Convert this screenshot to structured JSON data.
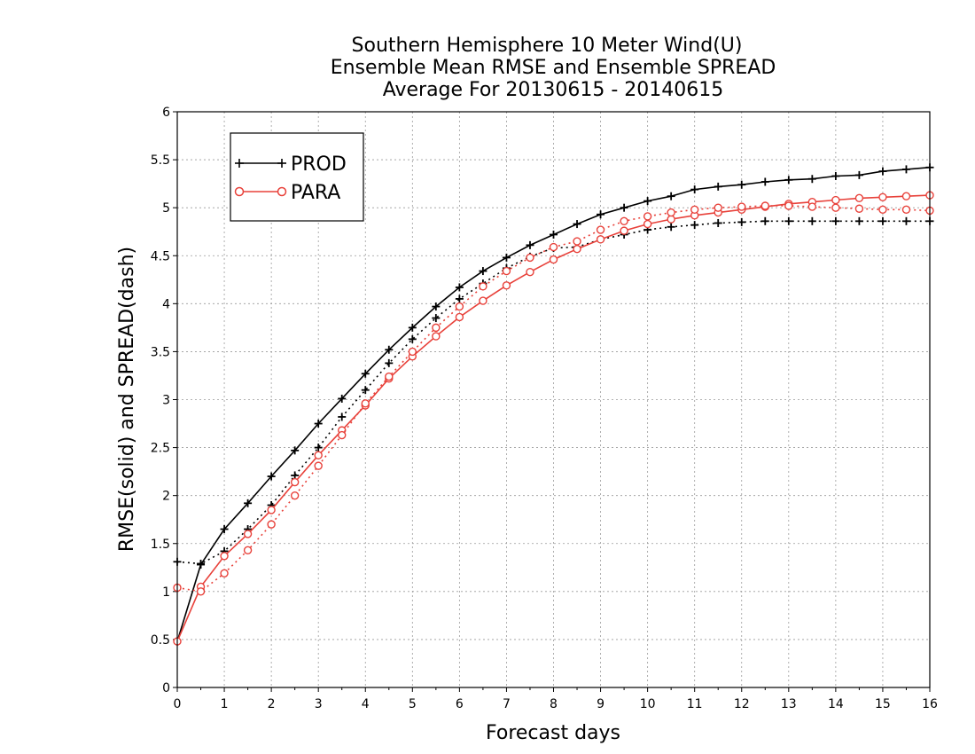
{
  "chart_data": {
    "type": "line",
    "title_lines": [
      "Southern Hemisphere 10 Meter Wind(U)",
      "Ensemble Mean RMSE and Ensemble SPREAD",
      "Average For 20130615 - 20140615"
    ],
    "xlabel": "Forecast days",
    "ylabel": "RMSE(solid) and SPREAD(dash)",
    "xlim": [
      0,
      16
    ],
    "ylim": [
      0,
      6
    ],
    "x_ticks": [
      "0",
      "1",
      "2",
      "3",
      "4",
      "5",
      "6",
      "7",
      "8",
      "9",
      "10",
      "11",
      "12",
      "13",
      "14",
      "15",
      "16"
    ],
    "y_ticks": [
      "0",
      "0.5",
      "1",
      "1.5",
      "2",
      "2.5",
      "3",
      "3.5",
      "4",
      "4.5",
      "5",
      "5.5",
      "6"
    ],
    "grid": true,
    "legend_position": "top-left",
    "x": [
      0,
      0.5,
      1,
      1.5,
      2,
      2.5,
      3,
      3.5,
      4,
      4.5,
      5,
      5.5,
      6,
      6.5,
      7,
      7.5,
      8,
      8.5,
      9,
      9.5,
      10,
      10.5,
      11,
      11.5,
      12,
      12.5,
      13,
      13.5,
      14,
      14.5,
      15,
      15.5,
      16
    ],
    "series": [
      {
        "name": "PROD",
        "metric": "RMSE",
        "line": "solid",
        "marker": "plus",
        "color": "#000000",
        "values": [
          0.48,
          1.28,
          1.65,
          1.92,
          2.2,
          2.47,
          2.75,
          3.01,
          3.27,
          3.52,
          3.75,
          3.97,
          4.17,
          4.34,
          4.48,
          4.61,
          4.72,
          4.83,
          4.93,
          5.0,
          5.07,
          5.12,
          5.19,
          5.22,
          5.24,
          5.27,
          5.29,
          5.3,
          5.33,
          5.34,
          5.38,
          5.4,
          5.42
        ]
      },
      {
        "name": "PROD",
        "metric": "SPREAD",
        "line": "dash",
        "marker": "plus",
        "color": "#000000",
        "values": [
          1.31,
          1.29,
          1.42,
          1.65,
          1.9,
          2.21,
          2.5,
          2.82,
          3.1,
          3.38,
          3.63,
          3.85,
          4.05,
          4.21,
          4.37,
          4.49,
          4.58,
          4.59,
          4.67,
          4.72,
          4.77,
          4.8,
          4.82,
          4.84,
          4.85,
          4.86,
          4.86,
          4.86,
          4.86,
          4.86,
          4.86,
          4.86,
          4.86
        ]
      },
      {
        "name": "PARA",
        "metric": "RMSE",
        "line": "solid",
        "marker": "circle",
        "color": "#e8413a",
        "values": [
          0.48,
          1.05,
          1.37,
          1.6,
          1.85,
          2.14,
          2.42,
          2.68,
          2.94,
          3.22,
          3.45,
          3.66,
          3.86,
          4.03,
          4.19,
          4.33,
          4.46,
          4.57,
          4.67,
          4.76,
          4.83,
          4.88,
          4.92,
          4.95,
          4.98,
          5.01,
          5.04,
          5.06,
          5.08,
          5.1,
          5.11,
          5.12,
          5.13
        ]
      },
      {
        "name": "PARA",
        "metric": "SPREAD",
        "line": "dash",
        "marker": "circle",
        "color": "#e8413a",
        "values": [
          1.04,
          1.0,
          1.19,
          1.43,
          1.7,
          2.0,
          2.31,
          2.63,
          2.96,
          3.24,
          3.5,
          3.75,
          3.97,
          4.18,
          4.34,
          4.48,
          4.59,
          4.65,
          4.77,
          4.86,
          4.91,
          4.95,
          4.98,
          5.0,
          5.01,
          5.02,
          5.02,
          5.01,
          5.0,
          4.99,
          4.98,
          4.98,
          4.97
        ]
      }
    ],
    "legend": [
      {
        "label": "PROD",
        "marker": "plus",
        "color": "#000000"
      },
      {
        "label": "PARA",
        "marker": "circle",
        "color": "#e8413a"
      }
    ]
  }
}
